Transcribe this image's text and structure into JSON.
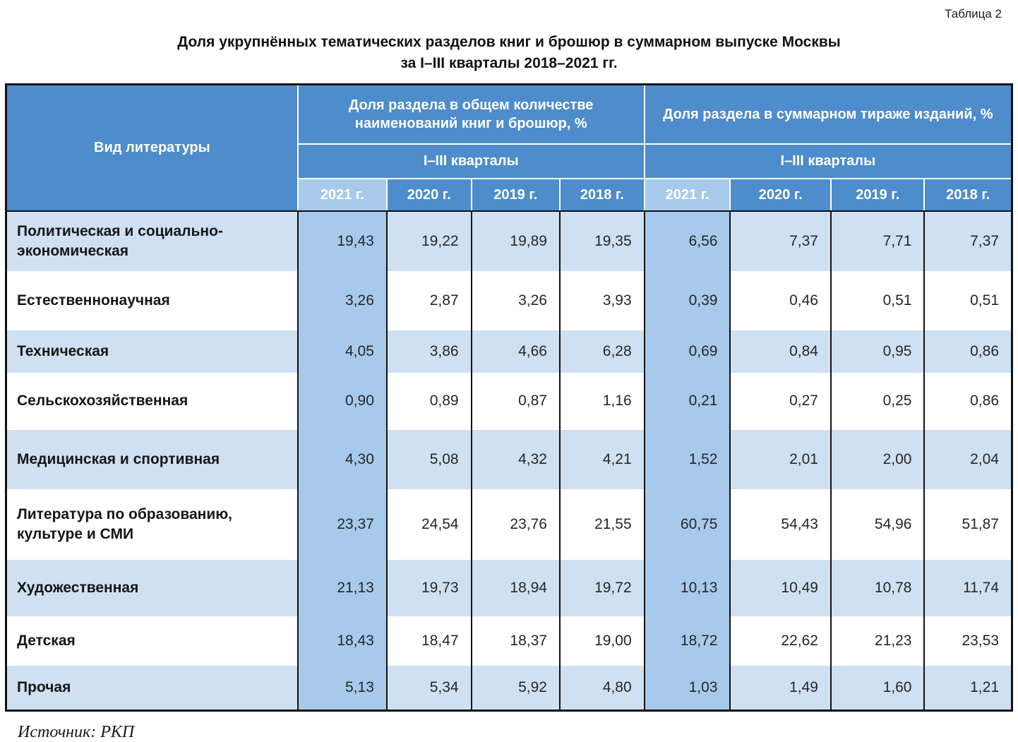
{
  "page": {
    "table_label": "Таблица 2",
    "title_line1": "Доля укрупнённых тематических разделов книг и брошюр в суммарном выпуске Москвы",
    "title_line2": "за I–III кварталы 2018–2021 гг.",
    "source": "Источник: РКП"
  },
  "colors": {
    "header_blue": "#4E8CCB",
    "column_highlight": "#A7C9EB",
    "row_stripe_light": "#CFE0F2",
    "row_stripe_white": "#FFFFFF",
    "border": "#111111"
  },
  "chart_data": {
    "type": "table",
    "title": "Доля укрупнённых тематических разделов книг и брошюр в суммарном выпуске Москвы за I–III кварталы 2018–2021 гг.",
    "row_header": "Вид литературы",
    "highlighted_column": "2021 г.",
    "col_groups": [
      {
        "title": "Доля раздела в общем количестве наименований книг и брошюр, %",
        "subtitle": "I–III кварталы",
        "columns": [
          "2021 г.",
          "2020 г.",
          "2019 г.",
          "2018 г."
        ]
      },
      {
        "title": "Доля раздела в суммарном тираже изданий, %",
        "subtitle": "I–III кварталы",
        "columns": [
          "2021 г.",
          "2020 г.",
          "2019 г.",
          "2018 г."
        ]
      }
    ],
    "rows": [
      {
        "label": "Политическая и социально-экономическая",
        "values": [
          "19,43",
          "19,22",
          "19,89",
          "19,35",
          "6,56",
          "7,37",
          "7,71",
          "7,37"
        ]
      },
      {
        "label": "Естественнонаучная",
        "values": [
          "3,26",
          "2,87",
          "3,26",
          "3,93",
          "0,39",
          "0,46",
          "0,51",
          "0,51"
        ]
      },
      {
        "label": "Техническая",
        "values": [
          "4,05",
          "3,86",
          "4,66",
          "6,28",
          "0,69",
          "0,84",
          "0,95",
          "0,86"
        ]
      },
      {
        "label": "Сельскохозяйственная",
        "values": [
          "0,90",
          "0,89",
          "0,87",
          "1,16",
          "0,21",
          "0,27",
          "0,25",
          "0,86"
        ]
      },
      {
        "label": "Медицинская и спортивная",
        "values": [
          "4,30",
          "5,08",
          "4,32",
          "4,21",
          "1,52",
          "2,01",
          "2,00",
          "2,04"
        ]
      },
      {
        "label": "Литература по образованию, культуре и СМИ",
        "values": [
          "23,37",
          "24,54",
          "23,76",
          "21,55",
          "60,75",
          "54,43",
          "54,96",
          "51,87"
        ]
      },
      {
        "label": "Художественная",
        "values": [
          "21,13",
          "19,73",
          "18,94",
          "19,72",
          "10,13",
          "10,49",
          "10,78",
          "11,74"
        ]
      },
      {
        "label": "Детская",
        "values": [
          "18,43",
          "18,47",
          "18,37",
          "19,00",
          "18,72",
          "22,62",
          "21,23",
          "23,53"
        ]
      },
      {
        "label": "Прочая",
        "values": [
          "5,13",
          "5,34",
          "5,92",
          "4,80",
          "1,03",
          "1,49",
          "1,60",
          "1,21"
        ]
      }
    ]
  }
}
